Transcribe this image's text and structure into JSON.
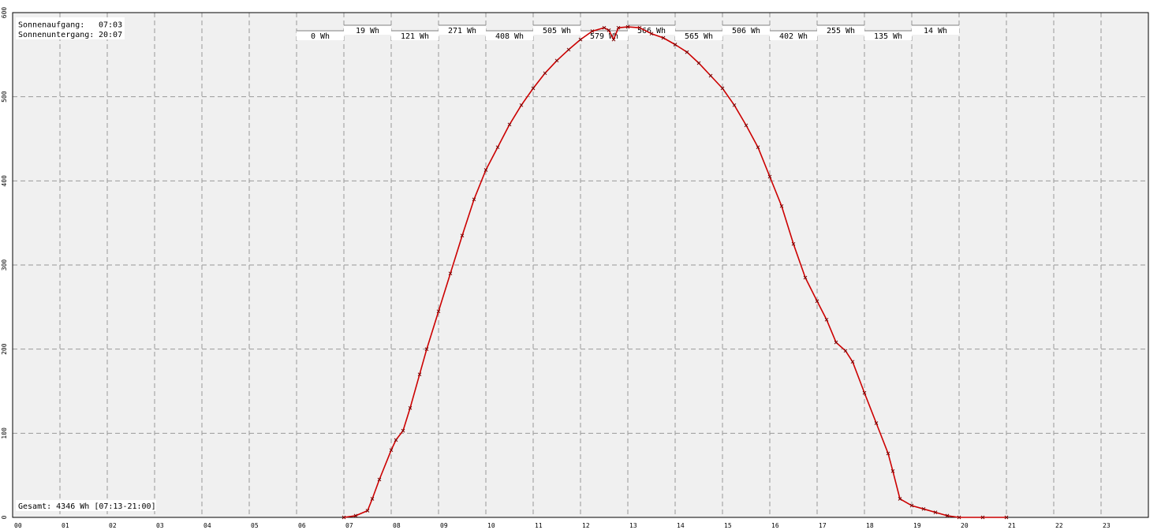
{
  "sun": {
    "sunrise_label": "Sonnenaufgang:",
    "sunrise_time": "07:03",
    "sunset_label": "Sonnenuntergang:",
    "sunset_time": "20:07"
  },
  "total": "Gesamt: 4346 Wh [07:13-21:00]",
  "colors": {
    "line": "#cc0000",
    "marker": "#7a0000",
    "background": "#f0f0f0",
    "grid": "#999999"
  },
  "chart_data": {
    "type": "line",
    "title": "",
    "xlabel": "",
    "ylabel": "",
    "xlim": [
      0,
      24
    ],
    "ylim": [
      0,
      600
    ],
    "grid": true,
    "x_ticks": [
      "00",
      "01",
      "02",
      "03",
      "04",
      "05",
      "06",
      "07",
      "08",
      "09",
      "10",
      "11",
      "12",
      "13",
      "14",
      "15",
      "16",
      "17",
      "18",
      "19",
      "20",
      "21",
      "22",
      "23"
    ],
    "y_ticks": [
      0,
      100,
      200,
      300,
      400,
      500,
      600
    ],
    "hourly_energy": [
      {
        "hour": 6,
        "label": "0 Wh"
      },
      {
        "hour": 7,
        "label": "19 Wh"
      },
      {
        "hour": 8,
        "label": "121 Wh"
      },
      {
        "hour": 9,
        "label": "271 Wh"
      },
      {
        "hour": 10,
        "label": "408 Wh"
      },
      {
        "hour": 11,
        "label": "505 Wh"
      },
      {
        "hour": 12,
        "label": "579 Wh"
      },
      {
        "hour": 13,
        "label": "566 Wh"
      },
      {
        "hour": 14,
        "label": "565 Wh"
      },
      {
        "hour": 15,
        "label": "506 Wh"
      },
      {
        "hour": 16,
        "label": "402 Wh"
      },
      {
        "hour": 17,
        "label": "255 Wh"
      },
      {
        "hour": 18,
        "label": "135 Wh"
      },
      {
        "hour": 19,
        "label": "14 Wh"
      }
    ],
    "series": [
      {
        "values": [
          [
            7.0,
            0
          ],
          [
            7.25,
            2
          ],
          [
            7.5,
            8
          ],
          [
            7.6,
            22
          ],
          [
            7.75,
            45
          ],
          [
            8.0,
            80
          ],
          [
            8.1,
            92
          ],
          [
            8.25,
            103
          ],
          [
            8.4,
            130
          ],
          [
            8.6,
            170
          ],
          [
            8.75,
            200
          ],
          [
            9.0,
            245
          ],
          [
            9.25,
            290
          ],
          [
            9.5,
            335
          ],
          [
            9.75,
            378
          ],
          [
            10.0,
            413
          ],
          [
            10.25,
            440
          ],
          [
            10.5,
            467
          ],
          [
            10.75,
            490
          ],
          [
            11.0,
            510
          ],
          [
            11.25,
            528
          ],
          [
            11.5,
            543
          ],
          [
            11.75,
            556
          ],
          [
            12.0,
            568
          ],
          [
            12.25,
            578
          ],
          [
            12.5,
            582
          ],
          [
            12.6,
            579
          ],
          [
            12.7,
            568
          ],
          [
            12.8,
            582
          ],
          [
            13.0,
            583
          ],
          [
            13.25,
            582
          ],
          [
            13.5,
            575
          ],
          [
            13.75,
            570
          ],
          [
            14.0,
            562
          ],
          [
            14.25,
            553
          ],
          [
            14.5,
            540
          ],
          [
            14.75,
            525
          ],
          [
            15.0,
            510
          ],
          [
            15.25,
            490
          ],
          [
            15.5,
            466
          ],
          [
            15.75,
            440
          ],
          [
            16.0,
            405
          ],
          [
            16.25,
            370
          ],
          [
            16.5,
            325
          ],
          [
            16.75,
            285
          ],
          [
            17.0,
            257
          ],
          [
            17.2,
            235
          ],
          [
            17.4,
            208
          ],
          [
            17.6,
            198
          ],
          [
            17.75,
            185
          ],
          [
            18.0,
            148
          ],
          [
            18.25,
            112
          ],
          [
            18.5,
            76
          ],
          [
            18.6,
            55
          ],
          [
            18.75,
            22
          ],
          [
            19.0,
            14
          ],
          [
            19.25,
            10
          ],
          [
            19.5,
            6
          ],
          [
            19.75,
            2
          ],
          [
            20.0,
            0
          ],
          [
            20.5,
            0
          ],
          [
            21.0,
            0
          ]
        ]
      }
    ]
  }
}
